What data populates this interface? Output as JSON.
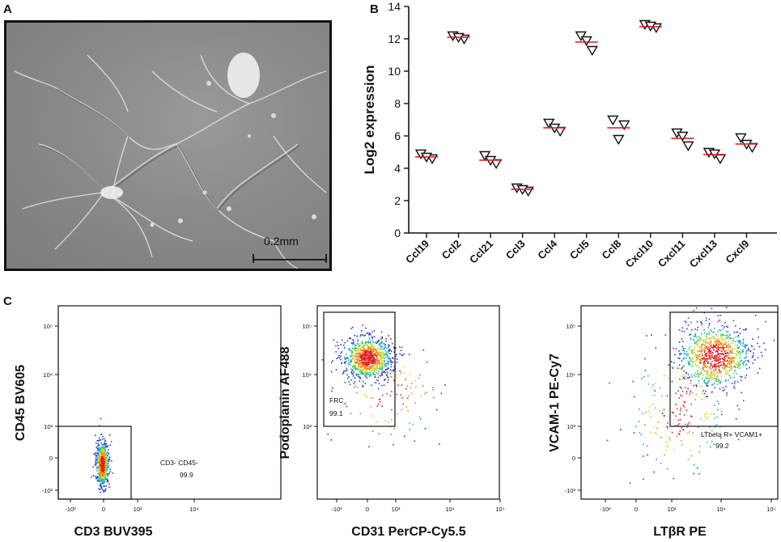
{
  "panels": {
    "a": {
      "letter": "A",
      "scale_bar_label": "0.2mm"
    },
    "b": {
      "letter": "B"
    },
    "c": {
      "letter": "C"
    }
  },
  "chart_data": [
    {
      "type": "scatter",
      "ylabel": "Log2 expression",
      "ylim": [
        0,
        14
      ],
      "yticks": [
        0,
        2,
        4,
        6,
        8,
        10,
        12,
        14
      ],
      "categories": [
        "Ccl19",
        "Ccl2",
        "Ccl21",
        "Ccl3",
        "Ccl4",
        "Ccl5",
        "Ccl8",
        "Cxcl10",
        "Cxcl11",
        "Cxcl13",
        "Cxcl9"
      ],
      "points": [
        [
          4.9,
          4.6,
          4.7
        ],
        [
          12.2,
          12.0,
          12.1
        ],
        [
          4.8,
          4.3,
          4.5
        ],
        [
          2.8,
          2.6,
          2.7
        ],
        [
          6.8,
          6.3,
          6.5
        ],
        [
          12.2,
          11.3,
          11.9
        ],
        [
          7.0,
          6.7,
          5.8
        ],
        [
          12.9,
          12.7,
          12.8
        ],
        [
          6.2,
          5.4,
          6.0
        ],
        [
          5.0,
          4.6,
          4.9
        ],
        [
          5.9,
          5.3,
          5.5
        ]
      ],
      "means": [
        4.7,
        12.1,
        4.5,
        2.7,
        6.5,
        11.8,
        6.5,
        12.75,
        5.85,
        4.85,
        5.5
      ],
      "marker": "open-inverted-triangle",
      "mean_color": "#e0141e"
    },
    {
      "type": "scatter",
      "xlabel": "CD3 BUV395",
      "ylabel": "CD45 BV605",
      "xticks": [
        "-10³",
        "0",
        "10³",
        "10⁴"
      ],
      "yticks": [
        "10⁵",
        "10⁴",
        "10³",
        "0",
        "-10³"
      ],
      "gate": {
        "label": "CD3- CD45-",
        "value": "99.9"
      }
    },
    {
      "type": "scatter",
      "xlabel": "CD31 PerCP-Cy5.5",
      "ylabel": "Podoplanin AF488",
      "xticks": [
        "-10³",
        "0",
        "10³",
        "10⁴",
        "10⁵"
      ],
      "yticks": [
        "10⁵",
        "10⁴",
        "10³"
      ],
      "gate": {
        "label": "FRC",
        "value": "99.1"
      }
    },
    {
      "type": "scatter",
      "xlabel": "LTβR PE",
      "ylabel": "VCAM-1 PE-Cy7",
      "xticks": [
        "-10³",
        "0",
        "10³",
        "10⁴",
        "10⁵"
      ],
      "yticks": [
        "10⁵",
        "10⁴",
        "10³",
        "0",
        "-10³"
      ],
      "gate": {
        "label": "LTbeta R+ VCAM1+",
        "value": "99.2"
      }
    }
  ]
}
